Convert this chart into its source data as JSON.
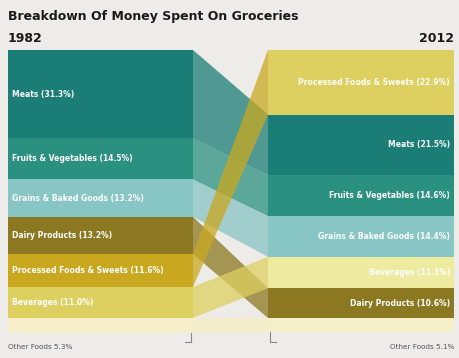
{
  "title": "Breakdown Of Money Spent On Groceries",
  "background_color": "#eeece8",
  "year_left": "1982",
  "year_right": "2012",
  "categories_1982": [
    {
      "label": "Meats (31.3%)",
      "value": 31.3,
      "color": "#1a7d76"
    },
    {
      "label": "Fruits & Vegetables (14.5%)",
      "value": 14.5,
      "color": "#2a9080"
    },
    {
      "label": "Grains & Baked Goods (13.2%)",
      "value": 13.2,
      "color": "#88c5c5"
    },
    {
      "label": "Dairy Products (13.2%)",
      "value": 13.2,
      "color": "#8b7820"
    },
    {
      "label": "Processed Foods & Sweets (11.6%)",
      "value": 11.6,
      "color": "#c9a820"
    },
    {
      "label": "Beverages (11.0%)",
      "value": 11.0,
      "color": "#ddd060"
    },
    {
      "label": "Other Foods",
      "value": 5.3,
      "color": "#f5eec8"
    }
  ],
  "categories_2012": [
    {
      "label": "Processed Foods & Sweets (22.9%)",
      "value": 22.9,
      "color": "#ddd060"
    },
    {
      "label": "Meats (21.5%)",
      "value": 21.5,
      "color": "#1a7d76"
    },
    {
      "label": "Fruits & Vegetables (14.6%)",
      "value": 14.6,
      "color": "#2a9080"
    },
    {
      "label": "Grains & Baked Goods (14.4%)",
      "value": 14.4,
      "color": "#88c5c5"
    },
    {
      "label": "Beverages (11.1%)",
      "value": 11.1,
      "color": "#eeeaa0"
    },
    {
      "label": "Dairy Products (10.6%)",
      "value": 10.6,
      "color": "#8b7820"
    },
    {
      "label": "Other Foods",
      "value": 5.1,
      "color": "#f5eec8"
    }
  ],
  "band_alpha": 0.75,
  "other_left": "Other Foods 5.3%",
  "other_right": "Other Foods 5.1%",
  "label_color_light": "#ffffff",
  "label_color_dark": "#333333",
  "year_fontsize": 9,
  "title_fontsize": 9,
  "label_fontsize": 5.5
}
